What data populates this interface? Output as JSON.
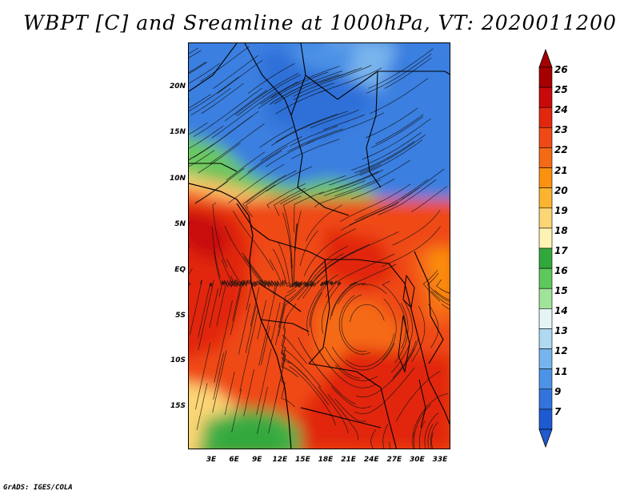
{
  "title": "WBPT [C] and Sreamline at 1000hPa, VT: 2020011200",
  "footer": "GrADS: IGES/COLA",
  "lat_labels": [
    "20N",
    "15N",
    "10N",
    "5N",
    "EQ",
    "5S",
    "10S",
    "15S"
  ],
  "lon_labels": [
    "3E",
    "6E",
    "9E",
    "12E",
    "15E",
    "18E",
    "21E",
    "24E",
    "27E",
    "30E",
    "33E"
  ],
  "colorbar": {
    "labels": [
      "26",
      "25",
      "24",
      "23",
      "22",
      "21",
      "20",
      "19",
      "18",
      "17",
      "16",
      "15",
      "14",
      "13",
      "12",
      "11",
      "9",
      "7"
    ],
    "colors": [
      "#a50000",
      "#c80a0a",
      "#e1280f",
      "#ef4a15",
      "#f56a14",
      "#fb9110",
      "#fbb431",
      "#fcd675",
      "#fff3b4",
      "#32a83c",
      "#5fc85a",
      "#a0e49a",
      "#e4f6f4",
      "#b0d8f0",
      "#78b4ec",
      "#4c92e6",
      "#3274dc",
      "#1e5ad0"
    ]
  },
  "map": {
    "lon_range": [
      0,
      34.5
    ],
    "lat_range": [
      -20,
      24.5
    ]
  }
}
